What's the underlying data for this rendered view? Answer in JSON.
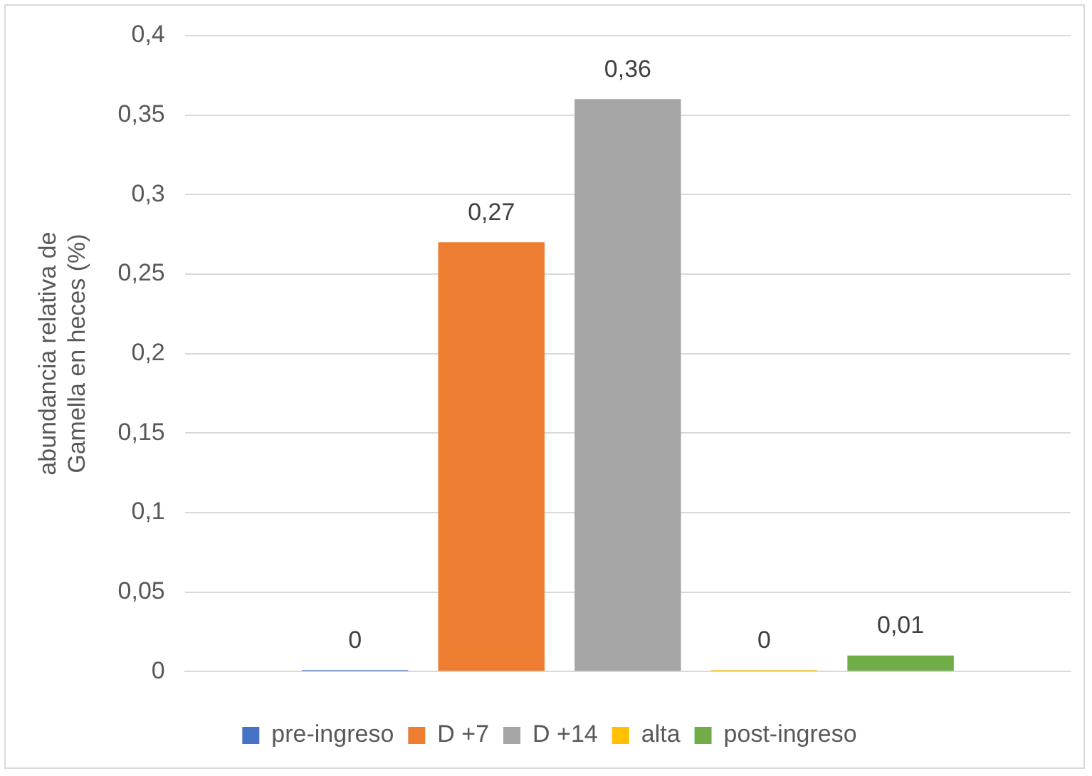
{
  "chart_data": {
    "type": "bar",
    "ylabel": "abundancia relativa de Gamella en heces (%)",
    "categories": [
      null
    ],
    "series": [
      {
        "name": "pre-ingreso",
        "color": "#4472c4",
        "values": [
          0
        ],
        "value_labels": [
          "0"
        ]
      },
      {
        "name": "D +7",
        "color": "#ed7d31",
        "values": [
          0.27
        ],
        "value_labels": [
          "0,27"
        ]
      },
      {
        "name": "D +14",
        "color": "#a5a5a5",
        "values": [
          0.36
        ],
        "value_labels": [
          "0,36"
        ]
      },
      {
        "name": "alta",
        "color": "#ffc000",
        "values": [
          0
        ],
        "value_labels": [
          "0"
        ]
      },
      {
        "name": "post-ingreso",
        "color": "#70ad47",
        "values": [
          0.01
        ],
        "value_labels": [
          "0,01"
        ]
      }
    ],
    "ylim": [
      0,
      0.4
    ],
    "yticks": [
      {
        "value": 0,
        "label": "0"
      },
      {
        "value": 0.05,
        "label": "0,05"
      },
      {
        "value": 0.1,
        "label": "0,1"
      },
      {
        "value": 0.15,
        "label": "0,15"
      },
      {
        "value": 0.2,
        "label": "0,2"
      },
      {
        "value": 0.25,
        "label": "0,25"
      },
      {
        "value": 0.3,
        "label": "0,3"
      },
      {
        "value": 0.35,
        "label": "0,35"
      },
      {
        "value": 0.4,
        "label": "0,4"
      }
    ],
    "grid": "y",
    "legend": "bottom"
  }
}
